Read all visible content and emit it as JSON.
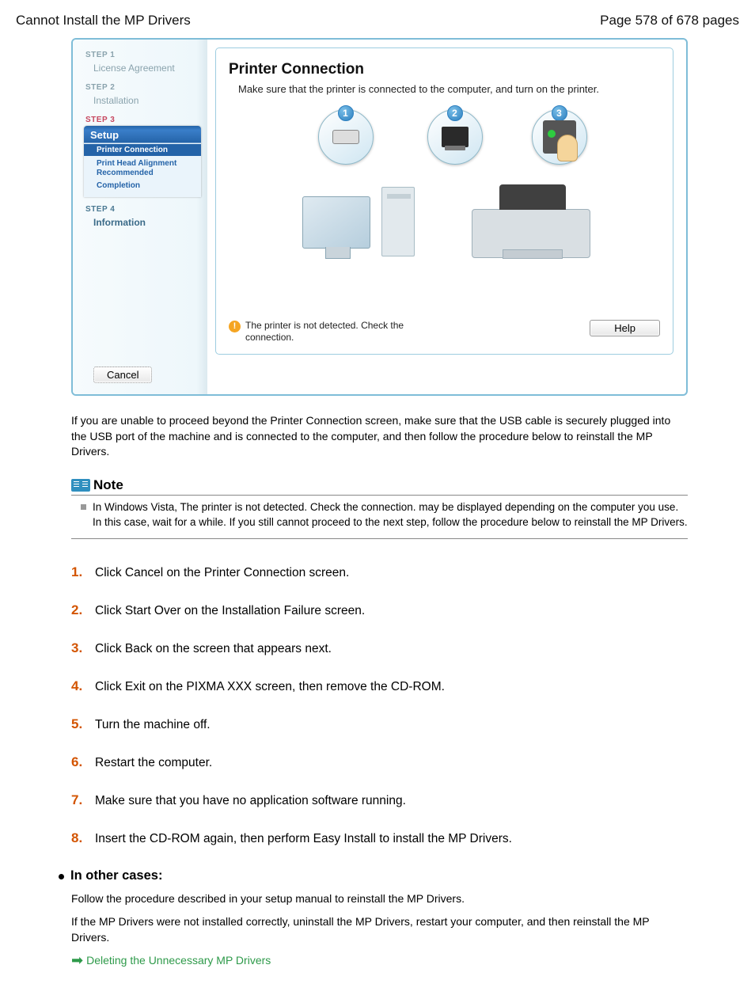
{
  "header": {
    "title_left": "Cannot Install the MP Drivers",
    "page_indicator": "Page 578 of 678 pages"
  },
  "installer": {
    "sidebar": {
      "step1": {
        "header": "STEP 1",
        "item": "License Agreement"
      },
      "step2": {
        "header": "STEP 2",
        "item": "Installation"
      },
      "step3": {
        "header": "STEP 3",
        "setup_title": "Setup",
        "items": [
          "Printer Connection",
          "Print Head Alignment Recommended",
          "Completion"
        ]
      },
      "step4": {
        "header": "STEP 4",
        "item": "Information"
      },
      "cancel": "Cancel"
    },
    "right": {
      "title": "Printer Connection",
      "description": "Make sure that the printer is connected to the computer, and turn on the printer.",
      "bubble_numbers": [
        "1",
        "2",
        "3"
      ],
      "warning_text": "The printer is not detected. Check the connection.",
      "help_button": "Help"
    }
  },
  "body": {
    "intro_para": "If you are unable to proceed beyond the Printer Connection screen, make sure that the USB cable is securely plugged into the USB port of the machine and is connected to the computer, and then follow the procedure below to reinstall the MP Drivers.",
    "note": {
      "title": "Note",
      "text": "In Windows Vista, The printer is not detected. Check the connection. may be displayed depending on the computer you use. In this case, wait for a while. If you still cannot proceed to the next step, follow the procedure below to reinstall the MP Drivers."
    },
    "steps": [
      "Click Cancel on the Printer Connection screen.",
      "Click Start Over on the Installation Failure screen.",
      "Click Back on the screen that appears next.",
      "Click Exit on the PIXMA XXX screen, then remove the CD-ROM.",
      "Turn the machine off.",
      "Restart the computer.",
      "Make sure that you have no application software running.",
      "Insert the CD-ROM again, then perform Easy Install to install the MP Drivers."
    ],
    "other_cases": {
      "header": "In other cases:",
      "para1": "Follow the procedure described in your setup manual to reinstall the MP Drivers.",
      "para2": "If the MP Drivers were not installed correctly, uninstall the MP Drivers, restart your computer, and then reinstall the MP Drivers.",
      "link": "Deleting the Unnecessary MP Drivers"
    }
  },
  "colors": {
    "accent_orange": "#d35400",
    "accent_red": "#c6465e",
    "link_green": "#2e9a4a",
    "installer_border": "#7fbdd8",
    "sidebar_blue": "#2463a8",
    "note_icon_blue": "#2f8fbf"
  }
}
